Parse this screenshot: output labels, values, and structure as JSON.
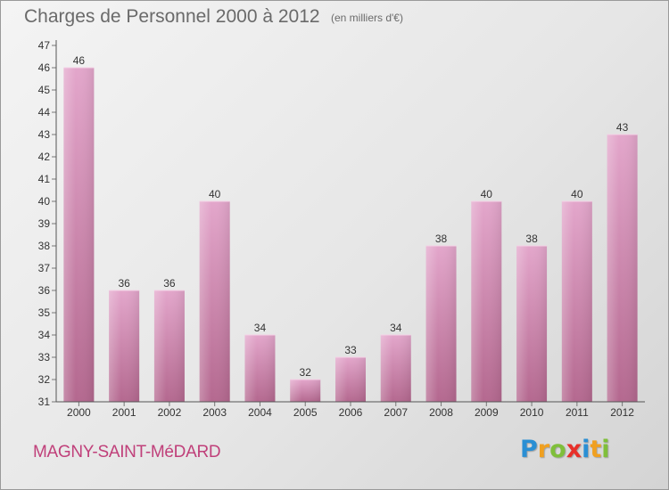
{
  "header": {
    "title": "Charges de Personnel 2000 à 2012",
    "subtitle": "(en milliers d'€)"
  },
  "footer": {
    "commune": "MAGNY-SAINT-MéDARD",
    "brand": [
      "P",
      "r",
      "o",
      "x",
      "i",
      "t",
      "i"
    ],
    "brand_colors": [
      "#2a8fd4",
      "#f0a020",
      "#7fbf3a",
      "#e8302a",
      "#2a8fd4",
      "#f0a020",
      "#7fbf3a"
    ]
  },
  "colors": {
    "bar_top": "#e3a6cb",
    "bar_bottom": "#b4688f",
    "axis": "#555555",
    "grid_tick": "#777777",
    "label": "#333333"
  },
  "chart_data": {
    "type": "bar",
    "title": "Charges de Personnel 2000 à 2012",
    "subtitle": "(en milliers d'€)",
    "categories": [
      "2000",
      "2001",
      "2002",
      "2003",
      "2004",
      "2005",
      "2006",
      "2007",
      "2008",
      "2009",
      "2010",
      "2011",
      "2012"
    ],
    "values": [
      46,
      36,
      36,
      40,
      34,
      32,
      33,
      34,
      38,
      40,
      38,
      40,
      43
    ],
    "ylim": [
      31,
      47
    ],
    "yticks": [
      31,
      32,
      33,
      34,
      35,
      36,
      37,
      38,
      39,
      40,
      41,
      42,
      43,
      44,
      45,
      46,
      47
    ],
    "xlabel": "",
    "ylabel": "",
    "grid": false,
    "data_labels": true
  }
}
